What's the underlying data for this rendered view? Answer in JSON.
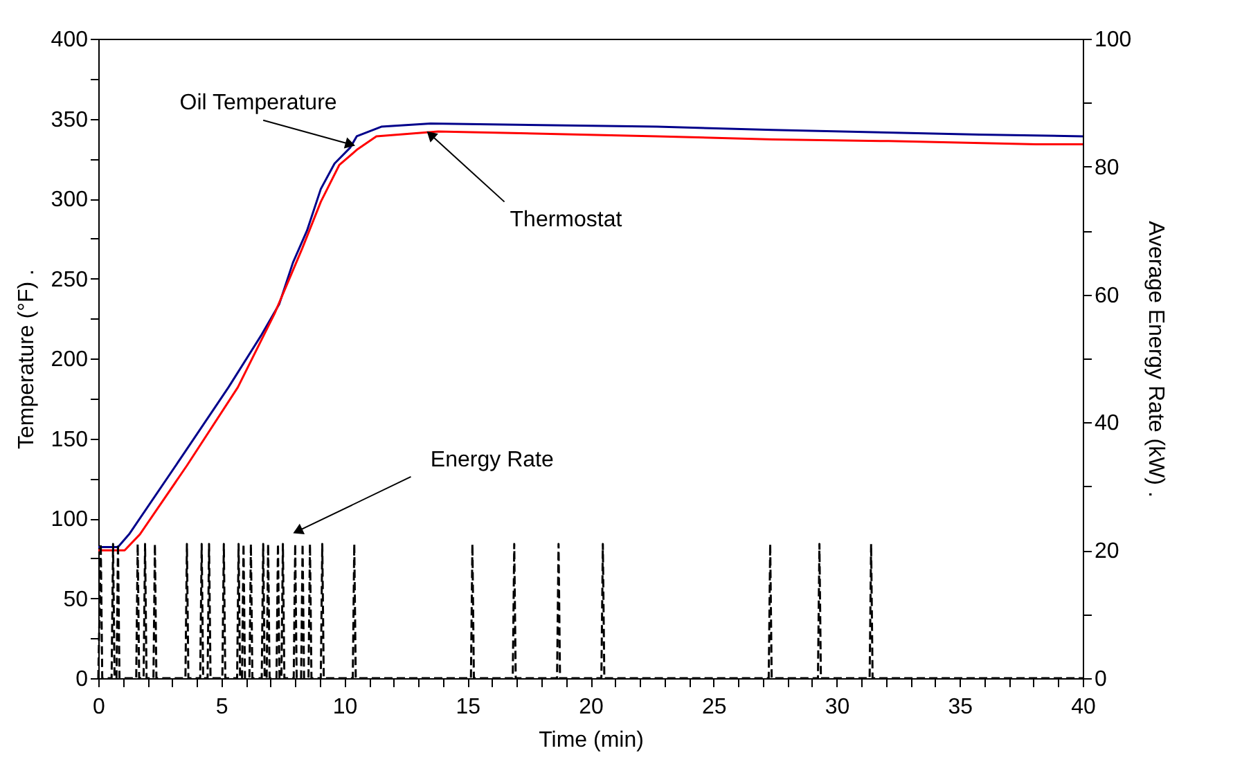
{
  "chart_data": {
    "type": "line",
    "xlabel": "Time (min)",
    "ylabel": "Temperature (°F)      .",
    "y2label": "Average Energy Rate (kW)      .",
    "xlim": [
      0,
      40
    ],
    "xticks": [
      0,
      {
        "value": 1,
        "label": null
      },
      {
        "value": 2,
        "label": null
      },
      {
        "value": 3,
        "label": null
      },
      {
        "value": 4,
        "label": null
      },
      5,
      {
        "value": 6,
        "label": null
      },
      {
        "value": 7,
        "label": null
      },
      {
        "value": 8,
        "label": null
      },
      {
        "value": 9,
        "label": null
      },
      10,
      {
        "value": 11,
        "label": null
      },
      {
        "value": 12,
        "label": null
      },
      {
        "value": 13,
        "label": null
      },
      {
        "value": 14,
        "label": null
      },
      15,
      {
        "value": 16,
        "label": null
      },
      {
        "value": 17,
        "label": null
      },
      {
        "value": 18,
        "label": null
      },
      {
        "value": 19,
        "label": null
      },
      20,
      {
        "value": 21,
        "label": null
      },
      {
        "value": 22,
        "label": null
      },
      {
        "value": 23,
        "label": null
      },
      {
        "value": 24,
        "label": null
      },
      25,
      {
        "value": 26,
        "label": null
      },
      {
        "value": 27,
        "label": null
      },
      {
        "value": 28,
        "label": null
      },
      {
        "value": 29,
        "label": null
      },
      30,
      {
        "value": 31,
        "label": null
      },
      {
        "value": 32,
        "label": null
      },
      {
        "value": 33,
        "label": null
      },
      {
        "value": 34,
        "label": null
      },
      35,
      {
        "value": 36,
        "label": null
      },
      {
        "value": 37,
        "label": null
      },
      {
        "value": 38,
        "label": null
      },
      {
        "value": 39,
        "label": null
      },
      40
    ],
    "ylim": [
      0,
      400
    ],
    "yticks": [
      0,
      {
        "value": 25,
        "label": null
      },
      50,
      {
        "value": 75,
        "label": null
      },
      100,
      {
        "value": 125,
        "label": null
      },
      150,
      {
        "value": 175,
        "label": null
      },
      200,
      {
        "value": 225,
        "label": null
      },
      250,
      {
        "value": 275,
        "label": null
      },
      300,
      {
        "value": 325,
        "label": null
      },
      350,
      {
        "value": 375,
        "label": null
      },
      400
    ],
    "y2lim": [
      0,
      100
    ],
    "y2ticks": [
      0,
      {
        "value": 10,
        "label": null
      },
      20,
      {
        "value": 30,
        "label": null
      },
      40,
      {
        "value": 50,
        "label": null
      },
      60,
      {
        "value": 70,
        "label": null
      },
      80,
      {
        "value": 90,
        "label": null
      },
      100
    ],
    "grid": false,
    "legend": false,
    "marker": "none",
    "series": [
      {
        "color": "#00008b",
        "line_style": "solid",
        "x": [
          0,
          0.8,
          1.25,
          3.41,
          5.29,
          6.6,
          7.35,
          7.91,
          8.48,
          9.04,
          9.6,
          10.24,
          10.5,
          11.5,
          13.5,
          22.7,
          27.4,
          35.8,
          40
        ],
        "values": [
          82,
          82,
          90,
          139,
          182,
          214,
          234,
          260,
          280,
          306,
          322,
          332,
          339,
          345,
          347,
          345,
          343,
          340,
          339
        ]
      },
      {
        "color": "#ff0000",
        "line_style": "solid",
        "x": [
          0,
          1.07,
          1.69,
          3.6,
          5.67,
          7.16,
          8.29,
          9.04,
          9.79,
          10.54,
          11.3,
          13.8,
          22.7,
          27.4,
          32.1,
          38.1,
          40
        ],
        "values": [
          80,
          80,
          90,
          133,
          182,
          228,
          269,
          298,
          321,
          331,
          339,
          342,
          339,
          337,
          336,
          334,
          334
        ]
      },
      {
        "color": "#000000",
        "line_style": "dashed",
        "axis": "y2",
        "x": [
          0,
          0.1,
          0.16,
          0.54,
          0.6,
          0.66,
          0.74,
          0.8,
          0.86,
          1.54,
          1.6,
          1.66,
          1.84,
          1.9,
          1.96,
          2.24,
          2.3,
          2.36,
          3.54,
          3.6,
          3.66,
          4.14,
          4.2,
          4.26,
          4.44,
          4.5,
          4.56,
          5.04,
          5.1,
          5.16,
          5.64,
          5.7,
          5.76,
          5.84,
          5.9,
          5.96,
          6.14,
          6.2,
          6.26,
          6.64,
          6.7,
          6.76,
          6.84,
          6.9,
          6.96,
          7.24,
          7.3,
          7.36,
          7.44,
          7.5,
          7.56,
          7.94,
          8.0,
          8.06,
          8.24,
          8.3,
          8.36,
          8.54,
          8.6,
          8.66,
          9.04,
          9.1,
          9.16,
          10.34,
          10.4,
          10.46,
          15.14,
          15.2,
          15.26,
          16.84,
          16.9,
          16.96,
          18.64,
          18.7,
          18.76,
          20.44,
          20.5,
          20.56,
          27.24,
          27.3,
          27.36,
          29.24,
          29.3,
          29.36,
          31.34,
          31.4,
          31.46,
          40
        ],
        "values": [
          0,
          21,
          0,
          0,
          21,
          0,
          0,
          21,
          0,
          0,
          21,
          0,
          0,
          21,
          0,
          0,
          21,
          0,
          0,
          21,
          0,
          0,
          21,
          0,
          0,
          21,
          0,
          0,
          21,
          0,
          0,
          21,
          0,
          0,
          21,
          0,
          0,
          21,
          0,
          0,
          21,
          0,
          0,
          21,
          0,
          0,
          21,
          0,
          0,
          21,
          0,
          0,
          21,
          0,
          0,
          21,
          0,
          0,
          21,
          0,
          0,
          21,
          0,
          0,
          21,
          0,
          0,
          21,
          0,
          0,
          21,
          0,
          0,
          21,
          0,
          0,
          21,
          0,
          0,
          21,
          0,
          0,
          21,
          0,
          0,
          21,
          0,
          0
        ]
      }
    ],
    "annotations": [
      {
        "text": "Oil Temperature",
        "x": 10.24,
        "y": 334
      },
      {
        "text": "Thermostat",
        "x": 13.5,
        "y": 340
      },
      "Energy Rate"
    ]
  }
}
